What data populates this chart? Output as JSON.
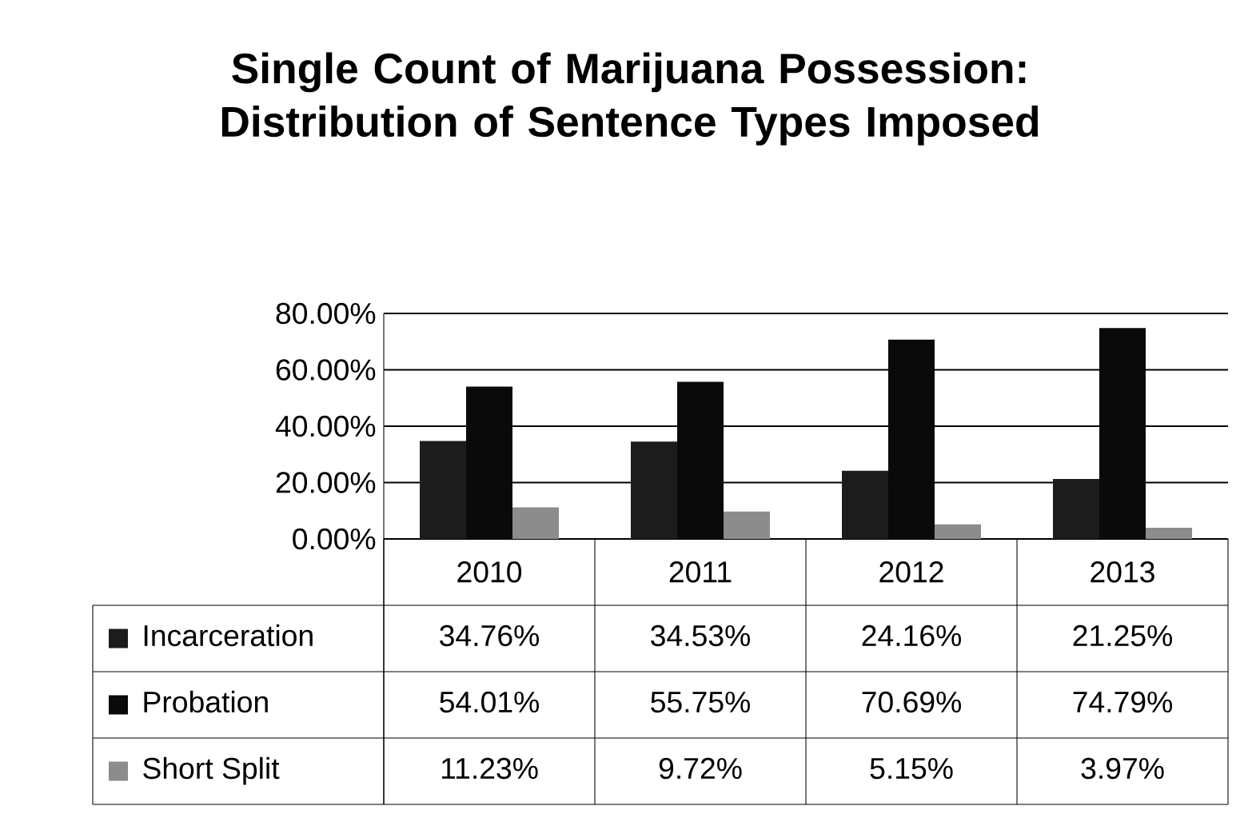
{
  "chart_data": {
    "type": "bar",
    "title": "Single Count of Marijuana Possession: Distribution of Sentence Types Imposed",
    "categories": [
      "2010",
      "2011",
      "2012",
      "2013"
    ],
    "series": [
      {
        "name": "Incarceration",
        "color": "#1c1c1c",
        "values": [
          34.76,
          34.53,
          24.16,
          21.25
        ],
        "value_labels": [
          "34.76%",
          "34.53%",
          "24.16%",
          "21.25%"
        ]
      },
      {
        "name": "Probation",
        "color": "#0a0a0a",
        "values": [
          54.01,
          55.75,
          70.69,
          74.79
        ],
        "value_labels": [
          "54.01%",
          "55.75%",
          "70.69%",
          "74.79%"
        ]
      },
      {
        "name": "Short Split",
        "color": "#8c8c8c",
        "values": [
          11.23,
          9.72,
          5.15,
          3.97
        ],
        "value_labels": [
          "11.23%",
          "9.72%",
          "5.15%",
          "3.97%"
        ]
      }
    ],
    "ylim": [
      0,
      80
    ],
    "yticks": [
      {
        "value": 0,
        "label": "0.00%"
      },
      {
        "value": 20,
        "label": "20.00%"
      },
      {
        "value": 40,
        "label": "40.00%"
      },
      {
        "value": 60,
        "label": "60.00%"
      },
      {
        "value": 80,
        "label": "80.00%"
      }
    ],
    "grid": "y",
    "legend": "bottom left"
  }
}
